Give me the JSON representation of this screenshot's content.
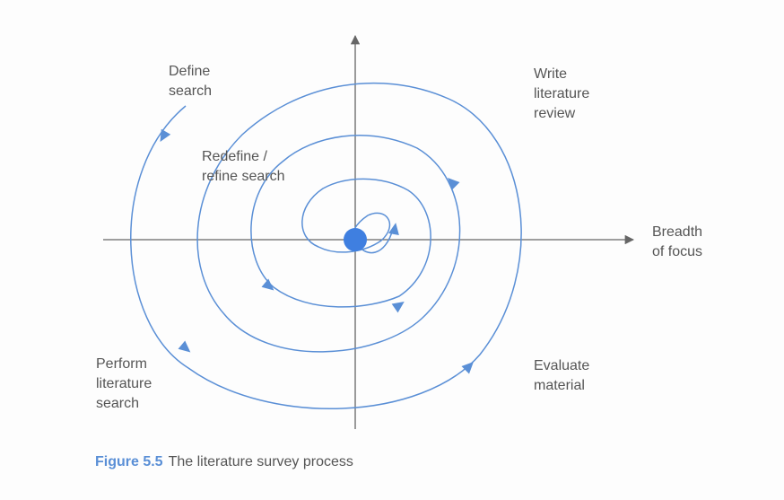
{
  "labels": {
    "define_search": "Define\nsearch",
    "write_review": "Write\nliterature\nreview",
    "redefine_search": "Redefine /\nrefine search",
    "breadth_of_focus": "Breadth\nof focus",
    "perform_search": "Perform\nliterature\nsearch",
    "evaluate_material": "Evaluate\nmaterial"
  },
  "caption": {
    "figure_number": "Figure 5.5",
    "text": "The literature survey process"
  },
  "colors": {
    "spiral": "#5a8fd6",
    "axis": "#666666",
    "caption_accent": "#5a8fd6",
    "text": "#555555"
  }
}
